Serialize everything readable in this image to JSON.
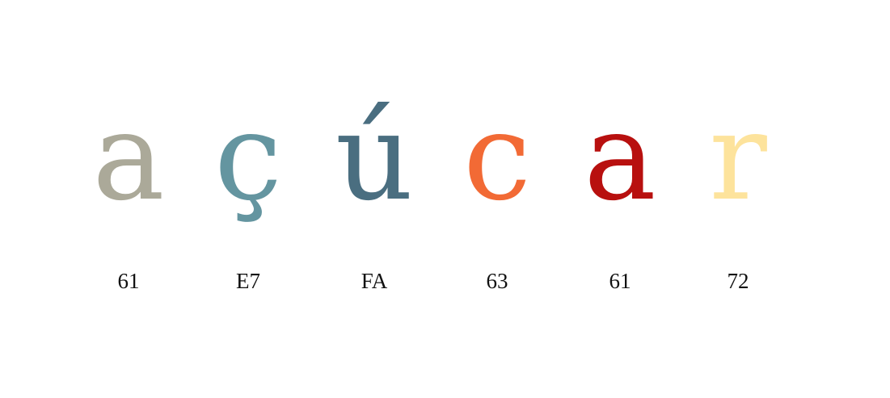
{
  "characters": [
    {
      "glyph": "a",
      "code": "61",
      "color": "#aba999"
    },
    {
      "glyph": "ç",
      "code": "E7",
      "color": "#6495a0"
    },
    {
      "glyph": "ú",
      "code": "FA",
      "color": "#4a6e80"
    },
    {
      "glyph": "c",
      "code": "63",
      "color": "#f26a35"
    },
    {
      "glyph": "a",
      "code": "61",
      "color": "#b8100f"
    },
    {
      "glyph": "r",
      "code": "72",
      "color": "#fde39c"
    }
  ]
}
